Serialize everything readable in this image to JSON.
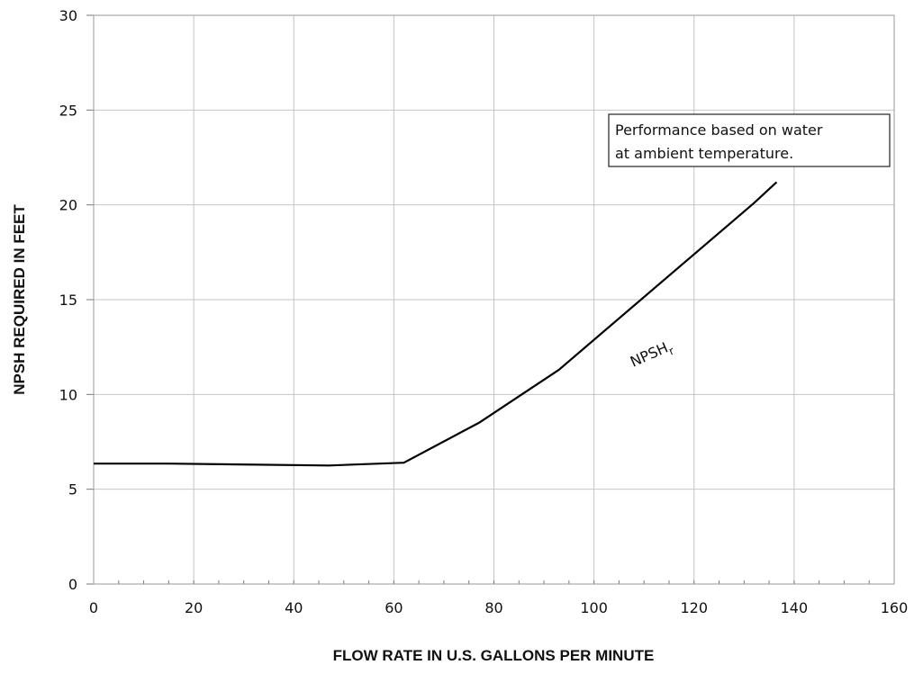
{
  "chart_data": {
    "type": "line",
    "xlabel": "FLOW RATE IN U.S. GALLONS PER MINUTE",
    "ylabel": "NPSH REQUIRED IN FEET",
    "xlim": [
      0,
      160
    ],
    "ylim": [
      0,
      30
    ],
    "x_ticks": [
      0,
      20,
      40,
      60,
      80,
      100,
      120,
      140,
      160
    ],
    "y_ticks": [
      0,
      5,
      10,
      15,
      20,
      25,
      30
    ],
    "grid": true,
    "series": [
      {
        "x": [
          0,
          15,
          47,
          62,
          77,
          93,
          132,
          136.5
        ],
        "y": [
          6.35,
          6.35,
          6.25,
          6.4,
          8.5,
          11.3,
          20.1,
          21.2
        ]
      }
    ],
    "curve_label": {
      "text": "NPSH",
      "subscript": "r"
    },
    "annotation": {
      "lines": [
        "Performance based on water",
        "at ambient temperature."
      ]
    }
  }
}
